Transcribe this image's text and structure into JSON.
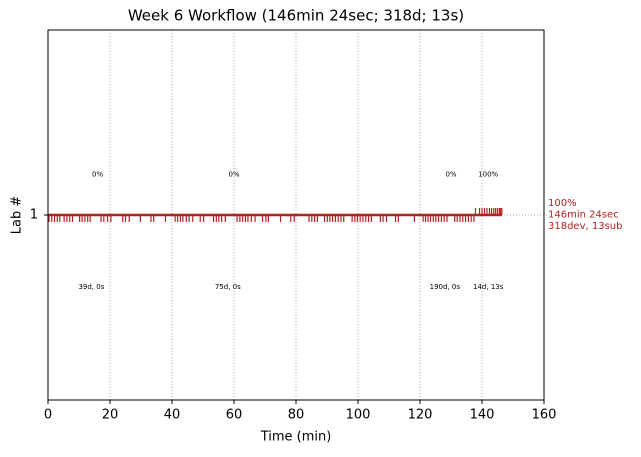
{
  "chart_data": {
    "type": "timeline",
    "title": "Week 6 Workflow (146min 24sec; 318d; 13s)",
    "x_label": "Time (min)",
    "y_label": "Lab #",
    "xlim": [
      0,
      160
    ],
    "xticks": [
      0,
      20,
      40,
      60,
      80,
      100,
      120,
      140,
      160
    ],
    "ylim": [
      0,
      2
    ],
    "yticks": [
      1
    ],
    "grid": true,
    "color": "#b22222",
    "span": [
      0,
      146.4
    ],
    "dev_times": [
      0.3,
      1.2,
      2.1,
      3.0,
      3.8,
      5.2,
      6.1,
      7.0,
      7.9,
      10.2,
      11.0,
      11.9,
      12.8,
      13.6,
      17.1,
      18.0,
      19.2,
      20.3,
      24.1,
      25.0,
      26.2,
      29.8,
      33.2,
      34.1,
      37.9,
      41.0,
      41.8,
      42.7,
      43.5,
      44.6,
      45.5,
      46.7,
      49.1,
      50.2,
      53.4,
      54.3,
      55.1,
      56.0,
      57.2,
      61.0,
      61.9,
      62.8,
      63.7,
      64.5,
      65.6,
      66.8,
      69.2,
      70.3,
      71.1,
      75.0,
      78.3,
      79.4,
      84.2,
      85.1,
      86.0,
      86.9,
      89.2,
      90.1,
      90.9,
      91.8,
      92.7,
      93.6,
      94.5,
      95.4,
      98.1,
      99.0,
      99.8,
      100.7,
      101.6,
      102.5,
      103.4,
      104.3,
      107.2,
      108.1,
      109.2,
      112.1,
      113.0,
      118.2,
      121.0,
      121.8,
      122.6,
      123.4,
      124.3,
      125.1,
      126.0,
      126.9,
      127.8,
      128.7,
      131.2,
      132.0,
      132.9,
      133.8,
      134.7,
      135.6,
      136.5,
      137.4
    ],
    "sub_times": [
      137.9,
      139.2,
      140.0,
      140.8,
      141.6,
      142.4,
      143.1,
      143.8,
      144.4,
      145.0,
      145.6,
      146.0,
      146.4
    ],
    "annotations": [
      {
        "x": 16,
        "y": 1.22,
        "text": "0%"
      },
      {
        "x": 60,
        "y": 1.22,
        "text": "0%"
      },
      {
        "x": 130,
        "y": 1.22,
        "text": "0%"
      },
      {
        "x": 142,
        "y": 1.22,
        "text": "100%"
      },
      {
        "x": 14,
        "y": 0.61,
        "text": "39d, 0s"
      },
      {
        "x": 58,
        "y": 0.61,
        "text": "75d, 0s"
      },
      {
        "x": 128,
        "y": 0.61,
        "text": "190d, 0s"
      },
      {
        "x": 142,
        "y": 0.61,
        "text": "14d, 13s"
      }
    ],
    "side_labels": [
      "100%",
      "146min 24sec",
      "318dev, 13sub"
    ]
  }
}
